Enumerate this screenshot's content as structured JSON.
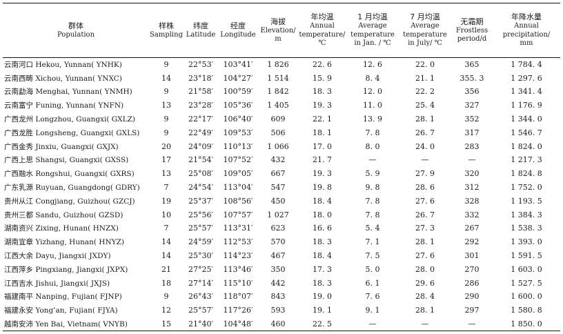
{
  "headers": [
    {
      "zh": "群体",
      "en": [
        "Population"
      ]
    },
    {
      "zh": "样株",
      "en": [
        "Sampling"
      ]
    },
    {
      "zh": "纬度",
      "en": [
        "Latitude"
      ]
    },
    {
      "zh": "经度",
      "en": [
        "Longitude"
      ]
    },
    {
      "zh": "海拔",
      "en": [
        "Elevation/",
        "m"
      ]
    },
    {
      "zh": "年均温",
      "en": [
        "Annual",
        "temperature/",
        "℃"
      ]
    },
    {
      "zh": "1 月均温",
      "en": [
        "Average",
        "temperature",
        "in Jan. / ℃"
      ]
    },
    {
      "zh": "7 月均温",
      "en": [
        "Average",
        "temperature",
        "in July/ ℃"
      ]
    },
    {
      "zh": "无霜期",
      "en": [
        "Frostless",
        "period/d"
      ]
    },
    {
      "zh": "年降水量",
      "en": [
        "Annual",
        "precipitation/",
        "mm"
      ]
    }
  ],
  "rows": [
    {
      "zh": "云南河口",
      "en": "Hekou, Yunnan( YNHK)",
      "sampling": "9",
      "lat": "22°53′",
      "lon": "103°41′",
      "elev": "1 826",
      "annual": "22. 6",
      "jan": "12. 6",
      "jul": "22. 0",
      "frost": "365",
      "precip": "1 784. 4"
    },
    {
      "zh": "云南西畴",
      "en": "Xichou, Yunnan( YNXC)",
      "sampling": "14",
      "lat": "23°18′",
      "lon": "104°27′",
      "elev": "1 514",
      "annual": "15. 9",
      "jan": "8. 4",
      "jul": "21. 1",
      "frost": "355. 3",
      "precip": "1 297. 6"
    },
    {
      "zh": "云南勐海",
      "en": "Menghai, Yunnan( YNMH)",
      "sampling": "9",
      "lat": "21°58′",
      "lon": "100°59′",
      "elev": "1 842",
      "annual": "18. 3",
      "jan": "12. 0",
      "jul": "22. 2",
      "frost": "356",
      "precip": "1 341. 4"
    },
    {
      "zh": "云南富宁",
      "en": "Funing, Yunnan( YNFN)",
      "sampling": "13",
      "lat": "23°28′",
      "lon": "105°36′",
      "elev": "1 405",
      "annual": "19. 3",
      "jan": "11. 0",
      "jul": "25. 4",
      "frost": "327",
      "precip": "1 176. 9"
    },
    {
      "zh": "广西龙州",
      "en": "Longzhou, Guangxi( GXLZ)",
      "sampling": "9",
      "lat": "22°17′",
      "lon": "106°40′",
      "elev": "609",
      "annual": "22. 1",
      "jan": "13. 9",
      "jul": "28. 1",
      "frost": "352",
      "precip": "1 344. 0"
    },
    {
      "zh": "广西龙胜",
      "en": "Longsheng, Guangxi( GXLS)",
      "sampling": "9",
      "lat": "22°49′",
      "lon": "109°53′",
      "elev": "506",
      "annual": "18. 1",
      "jan": "7. 8",
      "jul": "26. 7",
      "frost": "317",
      "precip": "1 546. 7"
    },
    {
      "zh": "广西金秀",
      "en": "Jinxiu, Guangxi( GXJX)",
      "sampling": "20",
      "lat": "24°09′",
      "lon": "110°13′",
      "elev": "1 066",
      "annual": "17. 0",
      "jan": "8. 0",
      "jul": "24. 0",
      "frost": "283",
      "precip": "1 824. 0"
    },
    {
      "zh": "广西上思",
      "en": "Shangsi, Guangxi( GXSS)",
      "sampling": "17",
      "lat": "21°54′",
      "lon": "107°52′",
      "elev": "432",
      "annual": "21. 7",
      "jan": "—",
      "jul": "—",
      "frost": "—",
      "precip": "1 217. 3"
    },
    {
      "zh": "广西融水",
      "en": "Rongshui, Guangxi( GXRS)",
      "sampling": "13",
      "lat": "25°08′",
      "lon": "109°05′",
      "elev": "667",
      "annual": "19. 3",
      "jan": "5. 9",
      "jul": "27. 9",
      "frost": "320",
      "precip": "1 824. 8"
    },
    {
      "zh": "广东乳源",
      "en": "Ruyuan, Guangdong( GDRY)",
      "sampling": "7",
      "lat": "24°54′",
      "lon": "113°04′",
      "elev": "547",
      "annual": "19. 8",
      "jan": "9. 8",
      "jul": "28. 6",
      "frost": "312",
      "precip": "1 752. 0"
    },
    {
      "zh": "贵州从江",
      "en": "Congjiang, Guizhou( GZCJ)",
      "sampling": "19",
      "lat": "25°37′",
      "lon": "108°56′",
      "elev": "450",
      "annual": "18. 4",
      "jan": "7. 8",
      "jul": "27. 6",
      "frost": "328",
      "precip": "1 193. 5"
    },
    {
      "zh": "贵州三都",
      "en": "Sandu, Guizhou( GZSD)",
      "sampling": "10",
      "lat": "25°56′",
      "lon": "107°57′",
      "elev": "1 027",
      "annual": "18. 0",
      "jan": "7. 8",
      "jul": "26. 7",
      "frost": "332",
      "precip": "1 384. 3"
    },
    {
      "zh": "湖南资兴",
      "en": "Zixing, Hunan( HNZX)",
      "sampling": "7",
      "lat": "25°57′",
      "lon": "113°31′",
      "elev": "623",
      "annual": "16. 6",
      "jan": "5. 4",
      "jul": "27. 3",
      "frost": "267",
      "precip": "1 538. 3"
    },
    {
      "zh": "湖南宜章",
      "en": "Yizhang, Hunan( HNYZ)",
      "sampling": "14",
      "lat": "24°59′",
      "lon": "112°53′",
      "elev": "570",
      "annual": "18. 3",
      "jan": "7. 1",
      "jul": "28. 1",
      "frost": "292",
      "precip": "1 393. 0"
    },
    {
      "zh": "江西大余",
      "en": "Dayu, Jiangxi( JXDY)",
      "sampling": "14",
      "lat": "25°30′",
      "lon": "114°23′",
      "elev": "467",
      "annual": "18. 4",
      "jan": "7. 5",
      "jul": "27. 6",
      "frost": "301",
      "precip": "1 591. 5"
    },
    {
      "zh": "江西萍乡",
      "en": "Pingxiang, Jiangxi( JXPX)",
      "sampling": "21",
      "lat": "27°25′",
      "lon": "113°46′",
      "elev": "350",
      "annual": "17. 3",
      "jan": "5. 0",
      "jul": "28. 0",
      "frost": "270",
      "precip": "1 603. 0"
    },
    {
      "zh": "江西吉水",
      "en": "Jishui, Jiangxi( JXJS)",
      "sampling": "18",
      "lat": "27°14′",
      "lon": "115°10′",
      "elev": "442",
      "annual": "18. 3",
      "jan": "6. 1",
      "jul": "29. 6",
      "frost": "286",
      "precip": "1 527. 5"
    },
    {
      "zh": "福建南平",
      "en": "Nanping, Fujian( FJNP)",
      "sampling": "9",
      "lat": "26°43′",
      "lon": "118°07′",
      "elev": "843",
      "annual": "19. 0",
      "jan": "7. 6",
      "jul": "28. 4",
      "frost": "290",
      "precip": "1 600. 0"
    },
    {
      "zh": "福建永安",
      "en": "Yong’an, Fujian( FJYA)",
      "sampling": "12",
      "lat": "25°57′",
      "lon": "117°26′",
      "elev": "593",
      "annual": "19. 1",
      "jan": "9. 1",
      "jul": "28. 1",
      "frost": "297",
      "precip": "1 580. 8"
    },
    {
      "zh": "越南安沛",
      "en": "Yen Bai, Vietnam( VNYB)",
      "sampling": "15",
      "lat": "21°40′",
      "lon": "104°48′",
      "elev": "460",
      "annual": "22. 5",
      "jan": "—",
      "jul": "—",
      "frost": "—",
      "precip": "1 850. 0"
    }
  ]
}
